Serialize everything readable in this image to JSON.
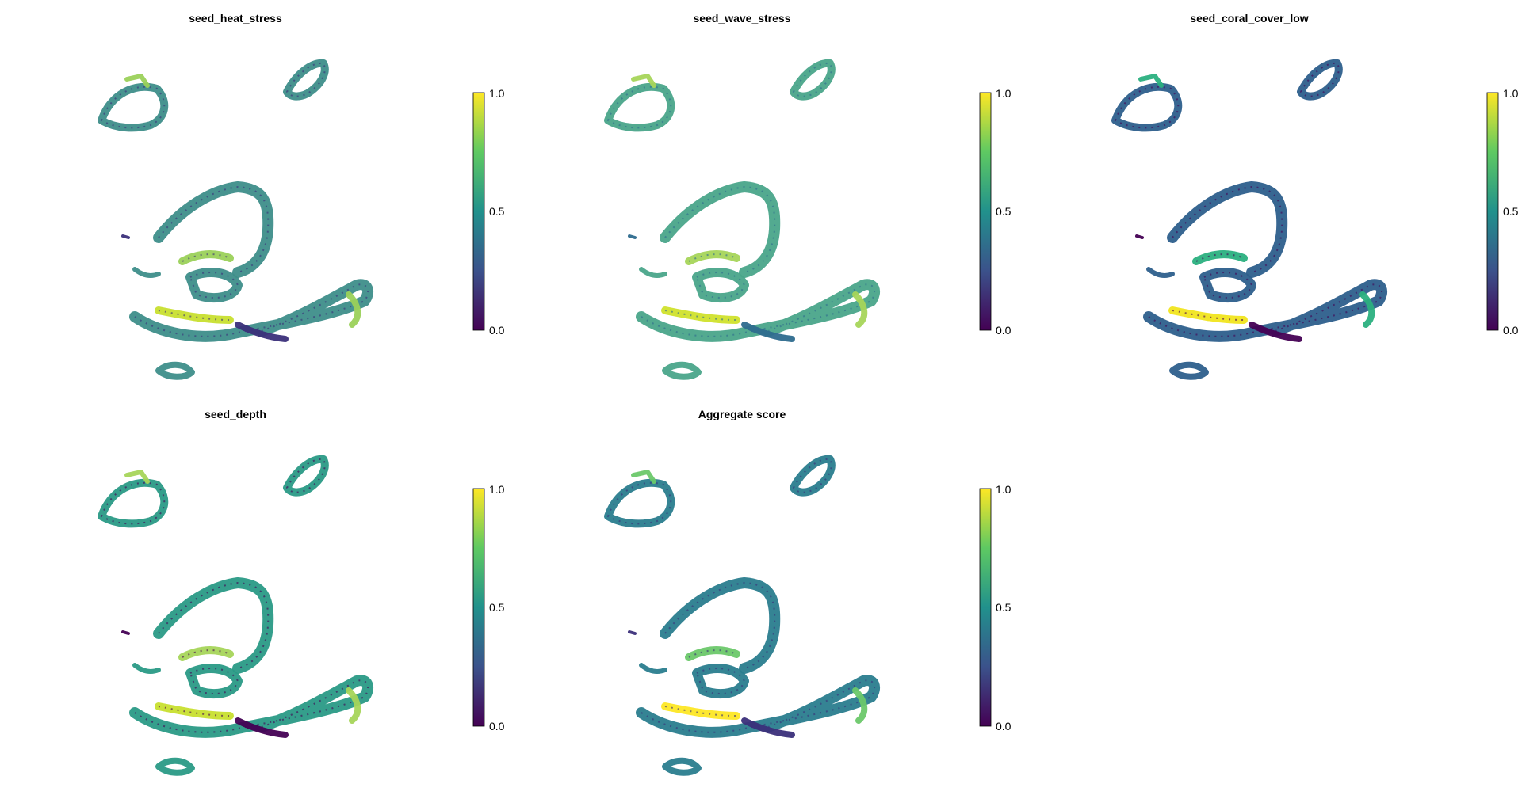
{
  "figure": {
    "panels": [
      {
        "id": "heat",
        "title": "seed_heat_stress",
        "base_color": "#3e8e8a",
        "accent_color": "#9bd15a",
        "hot_color": "#c8df2f",
        "low_color": "#3b2f7a"
      },
      {
        "id": "wave",
        "title": "seed_wave_stress",
        "base_color": "#4aa58a",
        "accent_color": "#a6d55a",
        "hot_color": "#d0e12c",
        "low_color": "#2e6b8e"
      },
      {
        "id": "coral",
        "title": "seed_coral_cover_low",
        "base_color": "#2d5f8c",
        "accent_color": "#2bb07f",
        "hot_color": "#f1e51d",
        "low_color": "#440154"
      },
      {
        "id": "depth",
        "title": "seed_depth",
        "base_color": "#2a9a86",
        "accent_color": "#a6d55a",
        "hot_color": "#c8df2f",
        "low_color": "#440154"
      },
      {
        "id": "aggregate",
        "title": "Aggregate score",
        "base_color": "#2a7d8e",
        "accent_color": "#6cc86a",
        "hot_color": "#fde725",
        "low_color": "#3b2f7a"
      }
    ],
    "colorbar": {
      "min_label": "0.0",
      "mid_label": "0.5",
      "max_label": "1.0",
      "colormap": "viridis",
      "stops": [
        "#440154",
        "#3b528b",
        "#21918c",
        "#5ec962",
        "#fde725"
      ]
    }
  }
}
